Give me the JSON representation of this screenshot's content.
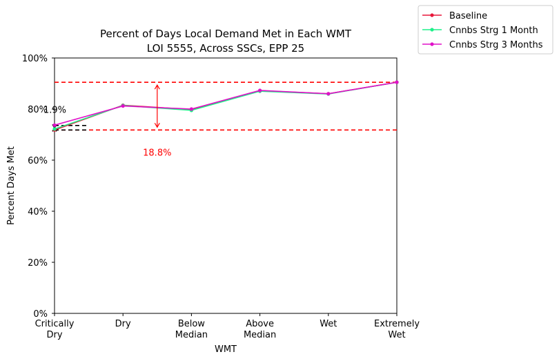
{
  "chart_data": {
    "type": "line",
    "title": "Percent of Days Local Demand Met in Each WMT",
    "subtitle": "LOI 5555, Across SSCs, EPP 25",
    "xlabel": "WMT",
    "ylabel": "Percent Days Met",
    "categories": [
      [
        "Critically",
        "Dry"
      ],
      [
        "Dry"
      ],
      [
        "Below",
        "Median"
      ],
      [
        "Above",
        "Median"
      ],
      [
        "Wet"
      ],
      [
        "Extremely",
        "Wet"
      ]
    ],
    "ylim": [
      0,
      100
    ],
    "yticks": [
      "0%",
      "20%",
      "40%",
      "60%",
      "80%",
      "100%"
    ],
    "yticks_values": [
      0,
      20,
      40,
      60,
      80,
      100
    ],
    "grid": false,
    "legend_position": "outside top-right",
    "series": [
      {
        "name": "Baseline",
        "color": "#e8173a",
        "values": [
          71.8,
          81.5,
          79.8,
          87.2,
          86.0,
          90.5
        ]
      },
      {
        "name": "Cnnbs Strg 1 Month",
        "color": "#1ef08a",
        "values": [
          72.2,
          81.4,
          79.5,
          87.0,
          85.9,
          90.5
        ]
      },
      {
        "name": "Cnnbs Strg 3 Months",
        "color": "#e010c8",
        "values": [
          73.7,
          81.2,
          80.0,
          87.3,
          86.0,
          90.5
        ]
      }
    ],
    "annotations": {
      "range_lines": {
        "color": "#ff0000",
        "values": [
          71.8,
          90.5
        ]
      },
      "range_arrow": {
        "x": 1.5,
        "from": 71.8,
        "to": 90.5,
        "label": "18.8%"
      },
      "diff_lines": {
        "color": "#000000",
        "values": [
          71.8,
          73.7
        ]
      },
      "diff_label": "1.9%"
    }
  }
}
